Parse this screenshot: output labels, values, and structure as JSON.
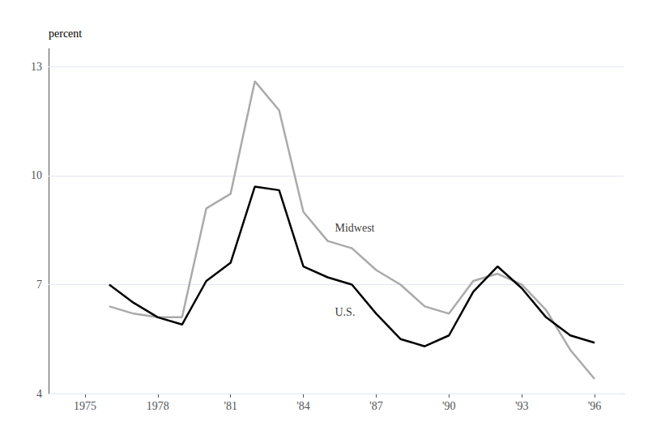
{
  "chart_data": {
    "type": "line",
    "ylabel": "percent",
    "xlim": [
      1973.5,
      1997.2
    ],
    "ylim": [
      4,
      13.5
    ],
    "xticks": [
      1975,
      1978,
      {
        "value": 1981,
        "label": "'81"
      },
      {
        "value": 1984,
        "label": "'84"
      },
      {
        "value": 1987,
        "label": "'87"
      },
      {
        "value": 1990,
        "label": "'90"
      },
      {
        "value": 1993,
        "label": "'93"
      },
      {
        "value": 1996,
        "label": "'96"
      }
    ],
    "yticks": [
      4,
      7,
      10,
      13
    ],
    "grid": true,
    "x": [
      1976,
      1977,
      1978,
      1979,
      1980,
      1981,
      1982,
      1983,
      1984,
      1985,
      1986,
      1987,
      1988,
      1989,
      1990,
      1991,
      1992,
      1993,
      1994,
      1995,
      1996
    ],
    "series": [
      {
        "name": "Midwest",
        "color": "#aaaaaa",
        "values": [
          6.4,
          6.2,
          6.1,
          6.1,
          9.1,
          9.5,
          12.6,
          11.8,
          9.0,
          8.2,
          8.0,
          7.4,
          7.0,
          6.4,
          6.2,
          7.1,
          7.3,
          7.0,
          6.3,
          5.2,
          4.4
        ]
      },
      {
        "name": "U.S.",
        "color": "#000000",
        "values": [
          7.0,
          6.5,
          6.1,
          5.9,
          7.1,
          7.6,
          9.7,
          9.6,
          7.5,
          7.2,
          7.0,
          6.2,
          5.5,
          5.3,
          5.6,
          6.8,
          7.5,
          6.9,
          6.1,
          5.6,
          5.4
        ]
      }
    ],
    "annotations": [
      {
        "text": "Midwest",
        "x": 1985.3,
        "y": 8.55
      },
      {
        "text": "U.S.",
        "x": 1985.3,
        "y": 6.25
      }
    ]
  }
}
